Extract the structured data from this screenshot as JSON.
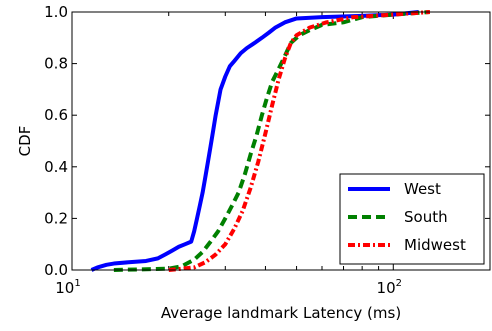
{
  "chart_data": {
    "type": "line",
    "title": "",
    "xlabel": "Average landmark Latency (ms)",
    "ylabel": "CDF",
    "xscale": "log",
    "xlim": [
      10,
      200
    ],
    "ylim": [
      0.0,
      1.0
    ],
    "xticks": [
      {
        "value": 10,
        "base": "10",
        "exp": "1"
      },
      {
        "value": 100,
        "base": "10",
        "exp": "2"
      }
    ],
    "yticks": [
      {
        "value": 0.0,
        "label": "0.0"
      },
      {
        "value": 0.2,
        "label": "0.2"
      },
      {
        "value": 0.4,
        "label": "0.4"
      },
      {
        "value": 0.6,
        "label": "0.6"
      },
      {
        "value": 0.8,
        "label": "0.8"
      },
      {
        "value": 1.0,
        "label": "1.0"
      }
    ],
    "grid": false,
    "legend_position": "lower-right",
    "series": [
      {
        "name": "West",
        "color": "#0000ff",
        "style": "solid",
        "points": [
          [
            11.5,
            0.0
          ],
          [
            12.0,
            0.01
          ],
          [
            12.8,
            0.02
          ],
          [
            13.5,
            0.025
          ],
          [
            15.0,
            0.03
          ],
          [
            17.0,
            0.035
          ],
          [
            18.5,
            0.045
          ],
          [
            19.5,
            0.06
          ],
          [
            20.5,
            0.075
          ],
          [
            21.5,
            0.09
          ],
          [
            22.5,
            0.1
          ],
          [
            23.5,
            0.11
          ],
          [
            24.0,
            0.15
          ],
          [
            24.5,
            0.2
          ],
          [
            25.0,
            0.25
          ],
          [
            25.5,
            0.3
          ],
          [
            26.0,
            0.36
          ],
          [
            26.5,
            0.42
          ],
          [
            27.0,
            0.48
          ],
          [
            27.5,
            0.54
          ],
          [
            28.0,
            0.6
          ],
          [
            28.5,
            0.65
          ],
          [
            29.0,
            0.7
          ],
          [
            30.0,
            0.75
          ],
          [
            31.0,
            0.79
          ],
          [
            32.0,
            0.81
          ],
          [
            33.5,
            0.84
          ],
          [
            35.0,
            0.86
          ],
          [
            37.0,
            0.88
          ],
          [
            39.0,
            0.9
          ],
          [
            41.0,
            0.92
          ],
          [
            43.0,
            0.94
          ],
          [
            46.0,
            0.96
          ],
          [
            50.0,
            0.975
          ],
          [
            60.0,
            0.98
          ],
          [
            80.0,
            0.985
          ],
          [
            100.0,
            0.99
          ],
          [
            120.0,
            1.0
          ]
        ]
      },
      {
        "name": "South",
        "color": "#008000",
        "style": "dashed",
        "points": [
          [
            13.5,
            0.0
          ],
          [
            17.0,
            0.003
          ],
          [
            20.0,
            0.005
          ],
          [
            22.0,
            0.015
          ],
          [
            24.0,
            0.04
          ],
          [
            25.5,
            0.07
          ],
          [
            27.0,
            0.11
          ],
          [
            28.5,
            0.15
          ],
          [
            30.0,
            0.2
          ],
          [
            31.5,
            0.25
          ],
          [
            33.0,
            0.3
          ],
          [
            34.5,
            0.37
          ],
          [
            36.0,
            0.45
          ],
          [
            37.5,
            0.52
          ],
          [
            39.0,
            0.6
          ],
          [
            40.5,
            0.67
          ],
          [
            42.0,
            0.73
          ],
          [
            44.0,
            0.78
          ],
          [
            46.0,
            0.83
          ],
          [
            48.0,
            0.88
          ],
          [
            51.0,
            0.91
          ],
          [
            55.0,
            0.93
          ],
          [
            60.0,
            0.95
          ],
          [
            70.0,
            0.96
          ],
          [
            80.0,
            0.98
          ],
          [
            100.0,
            0.99
          ],
          [
            130.0,
            1.0
          ]
        ]
      },
      {
        "name": "Midwest",
        "color": "#ff0000",
        "style": "dashdot",
        "points": [
          [
            20.0,
            0.0
          ],
          [
            22.0,
            0.005
          ],
          [
            24.0,
            0.01
          ],
          [
            26.0,
            0.03
          ],
          [
            28.0,
            0.06
          ],
          [
            30.0,
            0.1
          ],
          [
            32.0,
            0.16
          ],
          [
            34.0,
            0.23
          ],
          [
            36.0,
            0.32
          ],
          [
            38.0,
            0.42
          ],
          [
            40.0,
            0.53
          ],
          [
            42.0,
            0.64
          ],
          [
            44.0,
            0.74
          ],
          [
            46.0,
            0.82
          ],
          [
            48.0,
            0.88
          ],
          [
            50.0,
            0.91
          ],
          [
            55.0,
            0.94
          ],
          [
            62.0,
            0.96
          ],
          [
            75.0,
            0.98
          ],
          [
            100.0,
            0.99
          ],
          [
            130.0,
            1.0
          ]
        ]
      }
    ]
  }
}
